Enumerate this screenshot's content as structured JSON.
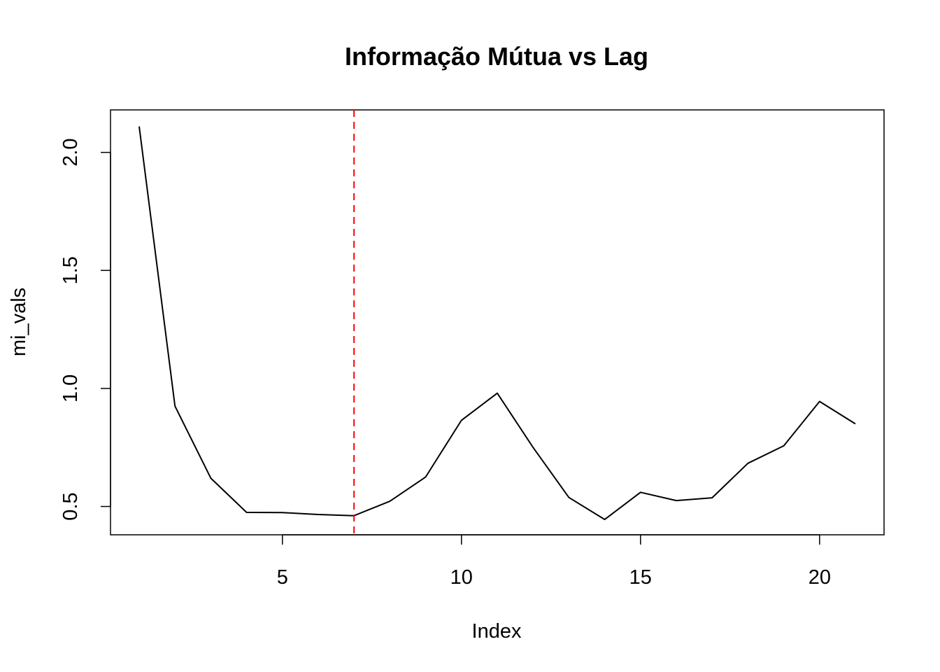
{
  "chart_data": {
    "type": "line",
    "title": "Informação Mútua vs Lag",
    "xlabel": "Index",
    "ylabel": "mi_vals",
    "x": [
      1,
      2,
      3,
      4,
      5,
      6,
      7,
      8,
      9,
      10,
      11,
      12,
      13,
      14,
      15,
      16,
      17,
      18,
      19,
      20,
      21
    ],
    "series": [
      {
        "values": [
          2.11,
          0.925,
          0.62,
          0.475,
          0.474,
          0.466,
          0.461,
          0.522,
          0.625,
          0.865,
          0.98,
          0.75,
          0.538,
          0.445,
          0.56,
          0.525,
          0.537,
          0.683,
          0.757,
          0.945,
          0.85
        ],
        "color": "#000000"
      }
    ],
    "vline": {
      "x": 7,
      "color": "#ff0000",
      "style": "dashed"
    },
    "xlim": [
      0.2,
      21.8
    ],
    "ylim": [
      0.38,
      2.18
    ],
    "xticks": [
      5,
      10,
      15,
      20
    ],
    "xtick_labels": [
      "5",
      "10",
      "15",
      "20"
    ],
    "yticks": [
      0.5,
      1.0,
      1.5,
      2.0
    ],
    "ytick_labels": [
      "0.5",
      "1.0",
      "1.5",
      "2.0"
    ],
    "grid": false,
    "legend": false
  }
}
